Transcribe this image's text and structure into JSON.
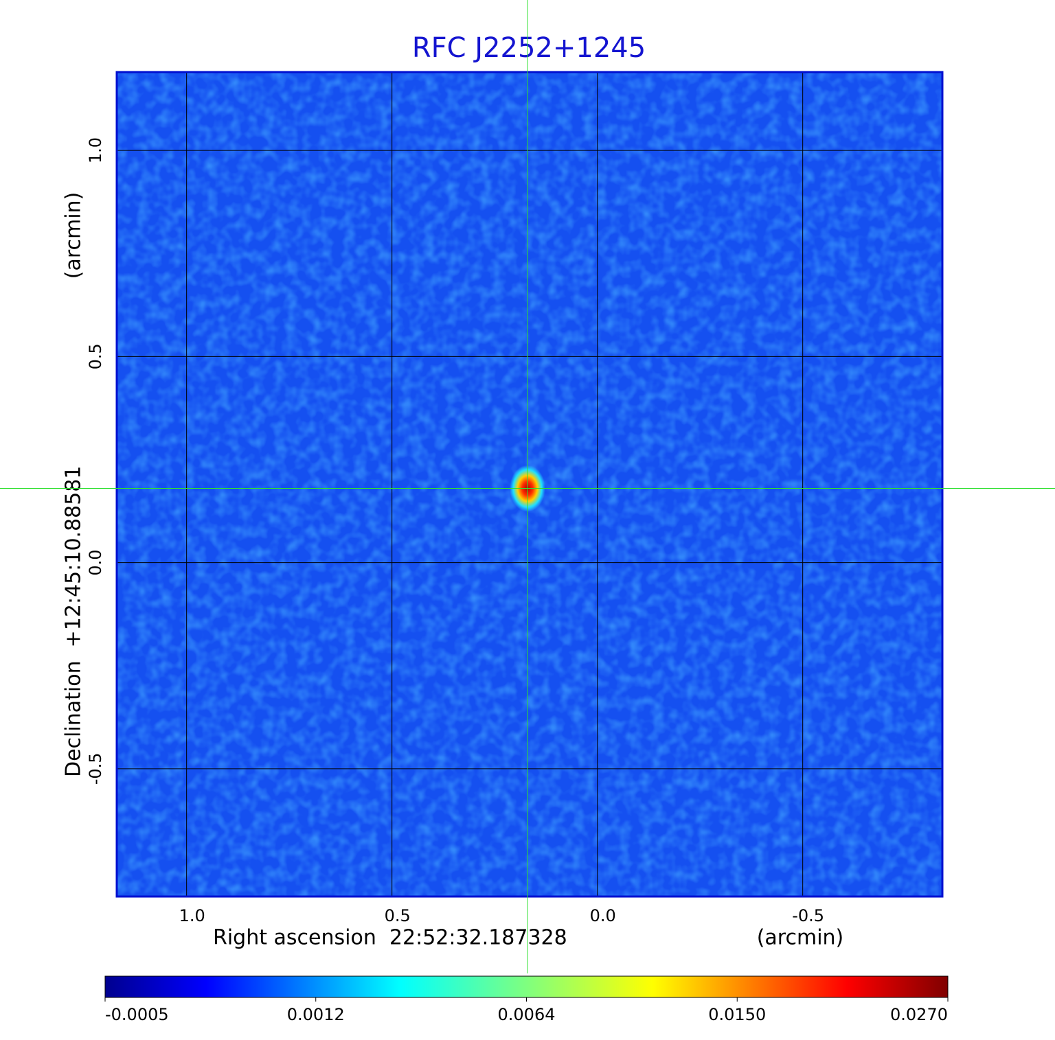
{
  "chart_data": {
    "type": "image",
    "title": "RFC J2252+1245",
    "x_label": "Right ascension  22:52:32.187328",
    "x_unit": "(arcmin)",
    "y_label": "Declination  +12:45:10.88581",
    "y_unit": "(arcmin)",
    "xlim": [
      1.17,
      -0.84
    ],
    "ylim": [
      -0.81,
      1.19
    ],
    "xticks": [
      {
        "value": 1,
        "label": "1.0"
      },
      {
        "value": 0.5,
        "label": "0.5"
      },
      {
        "value": 0,
        "label": "0.0"
      },
      {
        "value": -0.5,
        "label": "-0.5"
      }
    ],
    "yticks": [
      {
        "value": 1,
        "label": "1.0"
      },
      {
        "value": 0.5,
        "label": "0.5"
      },
      {
        "value": 0,
        "label": "0.0"
      },
      {
        "value": -0.5,
        "label": "-0.5"
      }
    ],
    "grid": true,
    "colormap": "jet",
    "colorbar_ticks": [
      -0.0005,
      0.0012,
      0.0064,
      {
        "value": 0.015,
        "label": "0.0150"
      },
      {
        "value": 0.027,
        "label": "0.0270"
      }
    ],
    "peak": {
      "x": 0.17,
      "y": 0.18,
      "value": 0.027
    }
  }
}
